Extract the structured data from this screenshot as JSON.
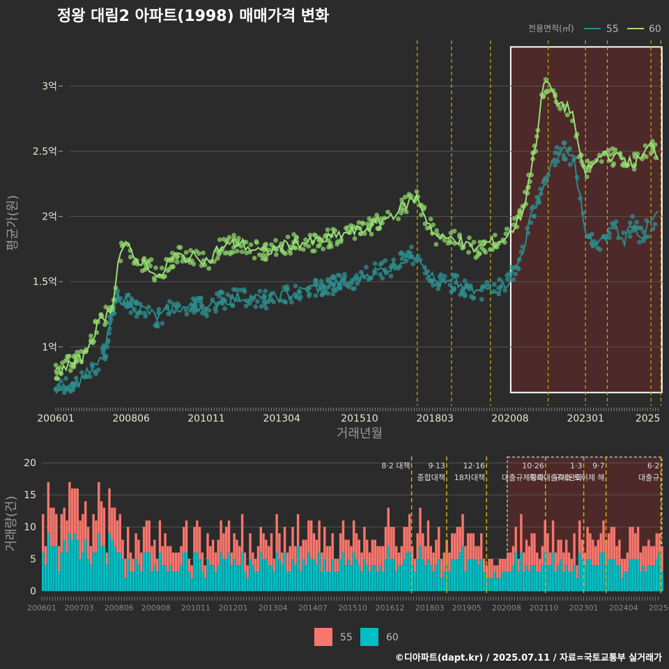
{
  "title": "정왕 대림2 아파트(1998) 매매가격 변화",
  "footer": "©디아파트(dapt.kr) / 2025.07.11 / 자료=국토교통부 실거래가",
  "legend_top": {
    "title": "전용면적(㎡)",
    "items": [
      "55",
      "60"
    ]
  },
  "legend_bottom": {
    "items": [
      "55",
      "60"
    ]
  },
  "colors": {
    "s55_line": "#2a8c8c",
    "s55_point": "#2f8f8f",
    "s60_line": "#9be07a",
    "s60_point": "#8ed46a",
    "bar55": "#f8766d",
    "bar60": "#00bfc4",
    "policy_line": "#d4b106",
    "highlight": "#5a2a2a",
    "grid": "#555555"
  },
  "chart_data": [
    {
      "type": "line",
      "name": "price",
      "xlabel": "거래년월",
      "ylabel": "평균가(원)",
      "x_ticks": [
        "200601",
        "200806",
        "201011",
        "201304",
        "201510",
        "201803",
        "202008",
        "202301",
        "2025"
      ],
      "y_ticks": [
        "1억",
        "1.5억",
        "2억",
        "2.5억",
        "3억"
      ],
      "y_tick_values": [
        1.0,
        1.5,
        2.0,
        2.5,
        3.0
      ],
      "ylim": [
        0.55,
        3.35
      ],
      "xlim": [
        2006.0,
        2025.5
      ],
      "policy_dates": [
        2017.6,
        2018.7,
        2019.95,
        2021.8,
        2023.0,
        2023.7,
        2025.1,
        2025.42
      ],
      "highlight_range": [
        2020.6,
        2025.45
      ],
      "highlight_y": [
        0.65,
        3.3
      ],
      "series": [
        {
          "name": "55",
          "points": [
            [
              2006.0,
              0.68
            ],
            [
              2006.3,
              0.72
            ],
            [
              2006.6,
              0.7
            ],
            [
              2006.9,
              0.78
            ],
            [
              2007.2,
              0.82
            ],
            [
              2007.4,
              0.88
            ],
            [
              2007.6,
              0.98
            ],
            [
              2007.8,
              1.25
            ],
            [
              2008.0,
              1.38
            ],
            [
              2008.3,
              1.35
            ],
            [
              2008.6,
              1.3
            ],
            [
              2008.9,
              1.28
            ],
            [
              2009.3,
              1.22
            ],
            [
              2009.6,
              1.28
            ],
            [
              2009.9,
              1.3
            ],
            [
              2010.3,
              1.3
            ],
            [
              2010.6,
              1.32
            ],
            [
              2010.9,
              1.28
            ],
            [
              2011.2,
              1.35
            ],
            [
              2011.5,
              1.36
            ],
            [
              2011.9,
              1.38
            ],
            [
              2012.3,
              1.38
            ],
            [
              2012.7,
              1.36
            ],
            [
              2013.0,
              1.38
            ],
            [
              2013.4,
              1.4
            ],
            [
              2013.8,
              1.42
            ],
            [
              2014.2,
              1.45
            ],
            [
              2014.6,
              1.46
            ],
            [
              2015.0,
              1.48
            ],
            [
              2015.5,
              1.5
            ],
            [
              2015.9,
              1.55
            ],
            [
              2016.3,
              1.58
            ],
            [
              2016.7,
              1.6
            ],
            [
              2017.0,
              1.65
            ],
            [
              2017.4,
              1.7
            ],
            [
              2017.6,
              1.72
            ],
            [
              2017.9,
              1.6
            ],
            [
              2018.2,
              1.5
            ],
            [
              2018.5,
              1.48
            ],
            [
              2018.8,
              1.5
            ],
            [
              2019.1,
              1.45
            ],
            [
              2019.5,
              1.42
            ],
            [
              2019.9,
              1.45
            ],
            [
              2020.2,
              1.45
            ],
            [
              2020.5,
              1.5
            ],
            [
              2020.8,
              1.62
            ],
            [
              2021.0,
              1.75
            ],
            [
              2021.2,
              1.95
            ],
            [
              2021.4,
              2.1
            ],
            [
              2021.6,
              2.2
            ],
            [
              2021.8,
              2.3
            ],
            [
              2022.0,
              2.45
            ],
            [
              2022.3,
              2.5
            ],
            [
              2022.6,
              2.45
            ],
            [
              2022.8,
              2.2
            ],
            [
              2023.0,
              1.85
            ],
            [
              2023.3,
              1.78
            ],
            [
              2023.6,
              1.82
            ],
            [
              2023.9,
              1.95
            ],
            [
              2024.2,
              1.8
            ],
            [
              2024.5,
              1.95
            ],
            [
              2024.8,
              1.85
            ],
            [
              2025.1,
              1.95
            ],
            [
              2025.4,
              2.05
            ]
          ]
        },
        {
          "name": "60",
          "points": [
            [
              2006.0,
              0.8
            ],
            [
              2006.3,
              0.85
            ],
            [
              2006.6,
              0.88
            ],
            [
              2006.9,
              0.92
            ],
            [
              2007.2,
              1.1
            ],
            [
              2007.5,
              1.22
            ],
            [
              2007.8,
              1.3
            ],
            [
              2008.0,
              1.65
            ],
            [
              2008.2,
              1.8
            ],
            [
              2008.5,
              1.68
            ],
            [
              2008.8,
              1.65
            ],
            [
              2009.1,
              1.6
            ],
            [
              2009.3,
              1.5
            ],
            [
              2009.6,
              1.65
            ],
            [
              2009.9,
              1.7
            ],
            [
              2010.3,
              1.68
            ],
            [
              2010.6,
              1.7
            ],
            [
              2010.9,
              1.65
            ],
            [
              2011.2,
              1.75
            ],
            [
              2011.6,
              1.78
            ],
            [
              2011.9,
              1.8
            ],
            [
              2012.3,
              1.75
            ],
            [
              2012.7,
              1.72
            ],
            [
              2013.0,
              1.75
            ],
            [
              2013.4,
              1.78
            ],
            [
              2013.8,
              1.8
            ],
            [
              2014.2,
              1.8
            ],
            [
              2014.6,
              1.82
            ],
            [
              2015.0,
              1.85
            ],
            [
              2015.5,
              1.88
            ],
            [
              2015.9,
              1.9
            ],
            [
              2016.3,
              1.95
            ],
            [
              2016.7,
              2.0
            ],
            [
              2017.0,
              2.05
            ],
            [
              2017.3,
              2.1
            ],
            [
              2017.6,
              2.15
            ],
            [
              2017.9,
              1.98
            ],
            [
              2018.2,
              1.85
            ],
            [
              2018.5,
              1.82
            ],
            [
              2018.8,
              1.85
            ],
            [
              2019.1,
              1.78
            ],
            [
              2019.5,
              1.75
            ],
            [
              2019.9,
              1.8
            ],
            [
              2020.2,
              1.8
            ],
            [
              2020.5,
              1.85
            ],
            [
              2020.8,
              1.95
            ],
            [
              2021.0,
              2.05
            ],
            [
              2021.2,
              2.3
            ],
            [
              2021.4,
              2.55
            ],
            [
              2021.6,
              2.95
            ],
            [
              2021.8,
              3.05
            ],
            [
              2022.0,
              2.9
            ],
            [
              2022.3,
              2.85
            ],
            [
              2022.6,
              2.8
            ],
            [
              2022.8,
              2.45
            ],
            [
              2023.0,
              2.35
            ],
            [
              2023.3,
              2.4
            ],
            [
              2023.6,
              2.5
            ],
            [
              2023.9,
              2.45
            ],
            [
              2024.2,
              2.45
            ],
            [
              2024.5,
              2.4
            ],
            [
              2024.8,
              2.45
            ],
            [
              2025.1,
              2.55
            ],
            [
              2025.4,
              2.45
            ]
          ]
        }
      ]
    },
    {
      "type": "bar",
      "name": "volume",
      "ylabel": "거래량(건)",
      "y_ticks": [
        "0",
        "5",
        "10",
        "15",
        "20"
      ],
      "y_tick_values": [
        0,
        5,
        10,
        15,
        20
      ],
      "ylim": [
        0,
        21
      ],
      "x_ticks": [
        "200601",
        "200703",
        "200806",
        "200908",
        "201011",
        "201201",
        "201304",
        "201407",
        "201510",
        "201612",
        "201803",
        "201905",
        "202008",
        "202110",
        "202301",
        "202404",
        "20250"
      ],
      "policies": [
        {
          "label": "8·2 대책",
          "x": 2017.6
        },
        {
          "label": "9·13\n종합대책",
          "x": 2018.7
        },
        {
          "label": "12·16\n18차대책",
          "x": 2019.95
        },
        {
          "label": "10·26\n대출규제강화",
          "x": 2021.8
        },
        {
          "label": "1·3\n규제완화",
          "x": 2023.0
        },
        {
          "label": "9·7\n특례대출축소 토허제 해",
          "x": 2023.7
        },
        {
          "label": "6·2\n대출규",
          "x": 2025.42
        }
      ],
      "series": [
        {
          "name": "55",
          "monthly_totals": "derived"
        },
        {
          "name": "60",
          "monthly_totals": "derived"
        }
      ]
    }
  ]
}
